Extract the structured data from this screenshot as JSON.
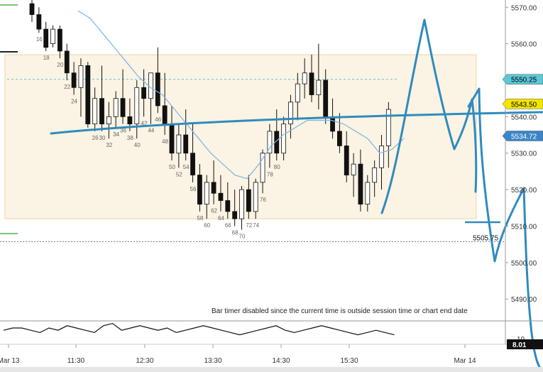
{
  "chart_data": {
    "type": "candlestick",
    "y_axis": {
      "range": [
        5484,
        5572
      ],
      "ticks": [
        "5570.00",
        "5560.00",
        "5550.00",
        "5540.00",
        "5530.00",
        "5520.00",
        "5510.00",
        "5500.00",
        "5490.00"
      ]
    },
    "x_axis": {
      "ticks": [
        "Mar 13",
        "11:30",
        "12:30",
        "13:30",
        "14:30",
        "15:30",
        "Mar 14"
      ]
    },
    "price_tags": [
      {
        "label": "5550.25",
        "value": 5550.25,
        "color": "#5bc8d8"
      },
      {
        "label": "5543.50",
        "value": 5543.5,
        "color": "#f2e600"
      },
      {
        "label": "5534.72",
        "value": 5534.72,
        "color": "#3a86c8"
      }
    ],
    "reference_line": {
      "label": "5505.75",
      "value": 5505.75
    },
    "range_box": {
      "high": 5557,
      "low": 5512
    },
    "dashed_level": 5550.25,
    "moving_average_values": [
      5569,
      5567,
      5563,
      5559,
      5555,
      5551,
      5548,
      5546,
      5542,
      5538,
      5534,
      5530,
      5527,
      5524,
      5523,
      5527,
      5532,
      5535,
      5537,
      5539,
      5539,
      5539,
      5538,
      5536,
      5534,
      5530,
      5531,
      5534
    ],
    "candles": [
      [
        5571,
        5573,
        5566,
        5568
      ],
      [
        5568,
        5570,
        5563,
        5564
      ],
      [
        5564,
        5566,
        5558,
        5559
      ],
      [
        5560,
        5565,
        5559,
        5564
      ],
      [
        5564,
        5565,
        5556,
        5558
      ],
      [
        5558,
        5560,
        5550,
        5552
      ],
      [
        5552,
        5555,
        5546,
        5548
      ],
      [
        5548,
        5556,
        5540,
        5554
      ],
      [
        5554,
        5555,
        5537,
        5538
      ],
      [
        5538,
        5548,
        5536,
        5545
      ],
      [
        5545,
        5554,
        5536,
        5538
      ],
      [
        5538,
        5544,
        5534,
        5540
      ],
      [
        5540,
        5547,
        5537,
        5545
      ],
      [
        5545,
        5553,
        5538,
        5540
      ],
      [
        5540,
        5545,
        5536,
        5538
      ],
      [
        5538,
        5550,
        5534,
        5548
      ],
      [
        5548,
        5553,
        5540,
        5545
      ],
      [
        5545,
        5552,
        5538,
        5552
      ],
      [
        5552,
        5559,
        5541,
        5543
      ],
      [
        5543,
        5552,
        5535,
        5538
      ],
      [
        5538,
        5543,
        5528,
        5530
      ],
      [
        5530,
        5538,
        5526,
        5535
      ],
      [
        5535,
        5542,
        5528,
        5530
      ],
      [
        5530,
        5538,
        5522,
        5524
      ],
      [
        5524,
        5527,
        5514,
        5516
      ],
      [
        5516,
        5524,
        5512,
        5522
      ],
      [
        5522,
        5528,
        5516,
        5519
      ],
      [
        5519,
        5524,
        5514,
        5517
      ],
      [
        5517,
        5522,
        5512,
        5514
      ],
      [
        5514,
        5520,
        5510,
        5512
      ],
      [
        5512,
        5521,
        5509,
        5520
      ],
      [
        5520,
        5524,
        5512,
        5514
      ],
      [
        5514,
        5523,
        5512,
        5522
      ],
      [
        5522,
        5531,
        5519,
        5530
      ],
      [
        5530,
        5538,
        5526,
        5536
      ],
      [
        5536,
        5542,
        5528,
        5530
      ],
      [
        5530,
        5540,
        5528,
        5538
      ],
      [
        5538,
        5546,
        5534,
        5544
      ],
      [
        5544,
        5552,
        5539,
        5549
      ],
      [
        5549,
        5556,
        5545,
        5552
      ],
      [
        5552,
        5557,
        5544,
        5546
      ],
      [
        5546,
        5560,
        5542,
        5550
      ],
      [
        5550,
        5553,
        5538,
        5540
      ],
      [
        5540,
        5545,
        5534,
        5536
      ],
      [
        5536,
        5541,
        5530,
        5532
      ],
      [
        5532,
        5536,
        5522,
        5524
      ],
      [
        5524,
        5530,
        5518,
        5527
      ],
      [
        5527,
        5531,
        5514,
        5516
      ],
      [
        5516,
        5524,
        5514,
        5522
      ],
      [
        5522,
        5528,
        5518,
        5526
      ],
      [
        5526,
        5535,
        5520,
        5532
      ],
      [
        5532,
        5544,
        5526,
        5542
      ]
    ],
    "bar_numbers": [
      {
        "label": "16",
        "bar": 1
      },
      {
        "label": "18",
        "bar": 2
      },
      {
        "label": "20",
        "bar": 4
      },
      {
        "label": "22",
        "bar": 5
      },
      {
        "label": "24",
        "bar": 6
      },
      {
        "label": "26",
        "bar": 9
      },
      {
        "label": "30",
        "bar": 10
      },
      {
        "label": "32",
        "bar": 11
      },
      {
        "label": "34",
        "bar": 12
      },
      {
        "label": "36",
        "bar": 13
      },
      {
        "label": "38",
        "bar": 14
      },
      {
        "label": "40",
        "bar": 15
      },
      {
        "label": "42",
        "bar": 16
      },
      {
        "label": "44",
        "bar": 17
      },
      {
        "label": "46",
        "bar": 18
      },
      {
        "label": "48",
        "bar": 19
      },
      {
        "label": "50",
        "bar": 20
      },
      {
        "label": "52",
        "bar": 21
      },
      {
        "label": "54",
        "bar": 22
      },
      {
        "label": "56",
        "bar": 23
      },
      {
        "label": "58",
        "bar": 24
      },
      {
        "label": "60",
        "bar": 25
      },
      {
        "label": "62",
        "bar": 26
      },
      {
        "label": "64",
        "bar": 27
      },
      {
        "label": "66",
        "bar": 28
      },
      {
        "label": "68",
        "bar": 29
      },
      {
        "label": "70",
        "bar": 30
      },
      {
        "label": "72",
        "bar": 31
      },
      {
        "label": "74",
        "bar": 32
      },
      {
        "label": "76",
        "bar": 33
      },
      {
        "label": "78",
        "bar": 34
      },
      {
        "label": "80",
        "bar": 35
      }
    ],
    "indicator": {
      "value_label": "8.01",
      "tick": "10",
      "values": [
        4,
        5,
        5,
        4,
        3,
        5,
        4,
        6,
        5,
        4,
        3,
        6,
        7,
        4,
        5,
        6,
        5,
        4,
        5,
        3,
        4,
        5,
        6,
        5,
        4,
        3,
        2,
        3,
        4,
        5,
        6,
        4,
        3,
        4,
        5,
        6,
        5,
        4,
        3,
        2,
        3,
        4,
        3,
        2
      ]
    },
    "notice": "Bar timer disabled since the current time is outside session time or chart end date",
    "colors": {
      "up": "#ffffff",
      "down": "#111111",
      "ma": "#7ab6e3",
      "drawing": "#2f8bbd",
      "box": "#fbf3e3"
    }
  }
}
